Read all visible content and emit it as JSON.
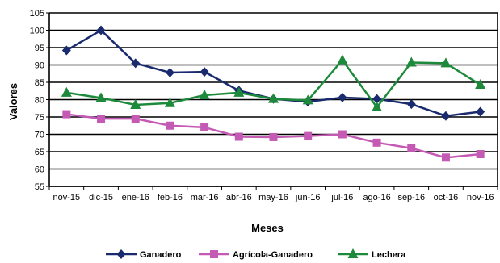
{
  "chart_data": {
    "type": "line",
    "title": "",
    "xlabel": "Meses",
    "ylabel": "Valores",
    "ylim": [
      55,
      105
    ],
    "yticks": [
      55,
      60,
      65,
      70,
      75,
      80,
      85,
      90,
      95,
      100,
      105
    ],
    "grid": true,
    "legend_position": "bottom",
    "categories": [
      "nov-15",
      "dic-15",
      "ene-16",
      "feb-16",
      "mar-16",
      "abr-16",
      "may-16",
      "jun-16",
      "jul-16",
      "ago-16",
      "sep-16",
      "oct-16",
      "nov-16"
    ],
    "series": [
      {
        "name": "Ganadero",
        "color": "#1a2a6e",
        "marker": "diamond",
        "values": [
          94.2,
          100.0,
          90.5,
          87.8,
          88.0,
          82.6,
          80.2,
          79.4,
          80.6,
          80.2,
          78.7,
          75.3,
          76.5
        ]
      },
      {
        "name": "Agrícola-Ganadero",
        "color": "#c45ab4",
        "marker": "square",
        "values": [
          75.8,
          74.5,
          74.5,
          72.5,
          72.0,
          69.3,
          69.2,
          69.5,
          70.0,
          67.6,
          66.0,
          63.3,
          64.3
        ]
      },
      {
        "name": "Lechera",
        "color": "#1c8a3a",
        "marker": "triangle",
        "values": [
          82.0,
          80.5,
          78.5,
          79.0,
          81.3,
          82.0,
          80.2,
          79.8,
          91.4,
          77.8,
          90.7,
          90.5,
          84.3
        ]
      }
    ]
  }
}
